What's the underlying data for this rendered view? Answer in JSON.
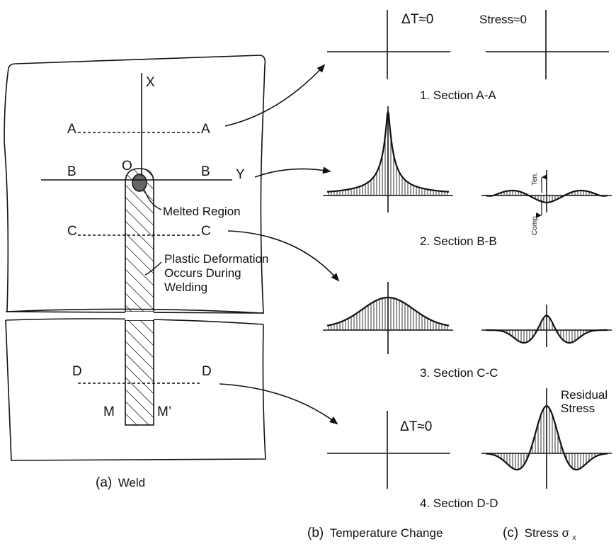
{
  "weld": {
    "x_axis": "X",
    "y_axis": "Y",
    "origin": "O",
    "sections": [
      {
        "left": "A",
        "right": "A"
      },
      {
        "left": "B",
        "right": "B"
      },
      {
        "left": "C",
        "right": "C"
      },
      {
        "left": "D",
        "right": "D"
      }
    ],
    "melted_region": "Melted Region",
    "plastic_lines": [
      "Plastic Deformation",
      "Occurs During",
      "Welding"
    ],
    "m_label": "M",
    "m_prime_label": "M’",
    "caption_letter": "(a)",
    "caption_text": "Weld"
  },
  "headers": {
    "temp_zero": "ΔT≈0",
    "stress_zero": "Stress≈0"
  },
  "section_titles": [
    "1. Section A-A",
    "2. Section B-B",
    "3. Section C-C",
    "4. Section D-D"
  ],
  "stress_bb": {
    "ten": "Ten.",
    "comp": "Comp."
  },
  "temp_dd": "ΔT≈0",
  "residual": [
    "Residual",
    "Stress"
  ],
  "captions": {
    "b_letter": "(b)",
    "b_text": "Temperature Change",
    "c_letter": "(c)",
    "c_text": "Stress σ",
    "c_sub": "x"
  },
  "colors": {
    "ink": "#111111",
    "hatch": "#333333"
  }
}
